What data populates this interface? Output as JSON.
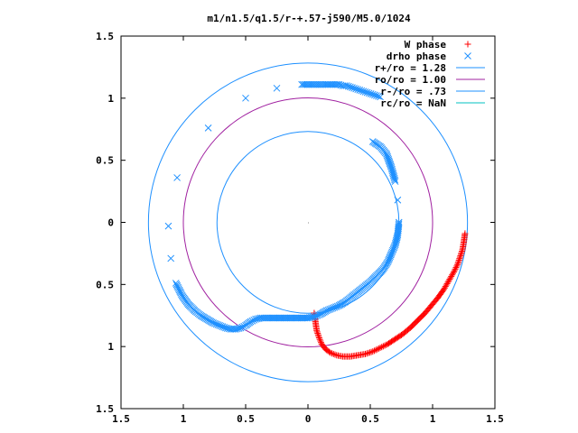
{
  "chart_data": {
    "type": "scatter",
    "title": "m1/n1.5/q1.5/r-+.57-j590/M5.0/1024",
    "xlim": [
      -1.5,
      1.5
    ],
    "ylim": [
      -1.5,
      1.5
    ],
    "x_ticks": [
      "1.5",
      "1",
      "0.5",
      "0",
      "0.5",
      "1",
      "1.5"
    ],
    "x_tick_values": [
      -1.5,
      -1,
      -0.5,
      0,
      0.5,
      1,
      1.5
    ],
    "y_ticks": [
      "1.5",
      "1",
      "0.5",
      "0",
      "0.5",
      "1",
      "1.5"
    ],
    "y_tick_values": [
      1.5,
      1,
      0.5,
      0,
      -0.5,
      -1,
      -1.5
    ],
    "legend_position": "top-right",
    "grid": false,
    "series": [
      {
        "name": "W phase",
        "marker": "+",
        "color": "#ff0000",
        "kind": "points",
        "x": [
          0.05,
          0.06,
          0.07,
          0.09,
          0.11,
          0.14,
          0.18,
          0.23,
          0.28,
          0.34,
          0.4,
          0.46,
          0.52,
          0.58,
          0.64,
          0.7,
          0.76,
          0.82,
          0.88,
          0.94,
          0.99,
          1.04,
          1.09,
          1.13,
          1.17,
          1.2,
          1.22,
          1.24,
          1.25,
          1.26
        ],
        "y": [
          -0.73,
          -0.8,
          -0.87,
          -0.93,
          -0.98,
          -1.02,
          -1.05,
          -1.07,
          -1.08,
          -1.08,
          -1.07,
          -1.06,
          -1.04,
          -1.01,
          -0.98,
          -0.94,
          -0.9,
          -0.85,
          -0.79,
          -0.73,
          -0.67,
          -0.61,
          -0.54,
          -0.47,
          -0.4,
          -0.34,
          -0.28,
          -0.22,
          -0.16,
          -0.09
        ]
      },
      {
        "name": "drho phase",
        "marker": "x",
        "color": "#1e90ff",
        "kind": "points",
        "x": [
          0.58,
          0.55,
          0.52,
          0.49,
          0.46,
          0.43,
          0.4,
          0.37,
          0.34,
          0.31,
          0.28,
          0.25,
          0.2,
          0.13,
          0.05,
          -0.05,
          -0.25,
          -0.5,
          -0.8,
          -1.05,
          -1.12,
          -1.1,
          -1.06,
          -1.01,
          -0.96,
          -0.91,
          -0.86,
          -0.81,
          -0.76,
          -0.71,
          -0.66,
          -0.62,
          -0.58,
          -0.54,
          -0.5,
          -0.46,
          -0.42,
          -0.38,
          -0.34,
          -0.3,
          -0.25,
          -0.2,
          -0.15,
          -0.1,
          -0.05,
          0.0,
          0.05,
          0.1,
          0.15,
          0.2,
          0.25,
          0.3,
          0.35,
          0.4,
          0.45,
          0.5,
          0.55,
          0.6,
          0.64,
          0.67,
          0.7,
          0.72,
          0.73,
          0.72,
          0.7,
          0.67,
          0.63,
          0.58,
          0.52
        ],
        "y": [
          1.01,
          1.02,
          1.03,
          1.04,
          1.05,
          1.06,
          1.07,
          1.08,
          1.09,
          1.1,
          1.1,
          1.11,
          1.11,
          1.11,
          1.11,
          1.11,
          1.08,
          1.0,
          0.76,
          0.36,
          -0.03,
          -0.29,
          -0.49,
          -0.59,
          -0.66,
          -0.71,
          -0.75,
          -0.78,
          -0.81,
          -0.83,
          -0.85,
          -0.86,
          -0.86,
          -0.85,
          -0.83,
          -0.8,
          -0.78,
          -0.77,
          -0.77,
          -0.77,
          -0.77,
          -0.77,
          -0.77,
          -0.77,
          -0.77,
          -0.77,
          -0.76,
          -0.74,
          -0.71,
          -0.69,
          -0.67,
          -0.64,
          -0.6,
          -0.56,
          -0.52,
          -0.48,
          -0.43,
          -0.38,
          -0.32,
          -0.25,
          -0.18,
          -0.1,
          0.0,
          0.18,
          0.33,
          0.44,
          0.55,
          0.61,
          0.65
        ]
      },
      {
        "name": "r+/ro = 1.28",
        "kind": "circle",
        "radius": 1.28,
        "color": "#1e90ff"
      },
      {
        "name": "ro/ro = 1.00",
        "kind": "circle",
        "radius": 1.0,
        "color": "#a020a0"
      },
      {
        "name": "r-/ro = .73",
        "kind": "circle",
        "radius": 0.73,
        "color": "#1e90ff"
      },
      {
        "name": "rc/ro = NaN",
        "kind": "circle",
        "radius": null,
        "color": "#00c0c0"
      }
    ]
  }
}
